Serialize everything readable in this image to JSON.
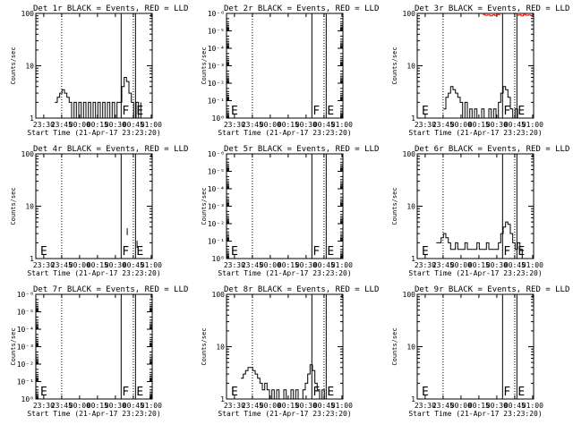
{
  "chart_data": [
    {
      "type": "line",
      "title": "Det 1r BLACK = Events, RED = LLD",
      "xlabel": "Start Time (21-Apr-17 23:23:20)",
      "ylabel": "Counts/sec",
      "x_tick_labels": [
        "23:30",
        "23:45",
        "00:00",
        "00:15",
        "00:30",
        "00:45",
        "01:00"
      ],
      "x_ticks_min": [
        6.67,
        21.67,
        36.67,
        51.67,
        66.67,
        81.67,
        96.67
      ],
      "xlim": [
        0,
        97.5
      ],
      "yscale": "log",
      "ylim": [
        1,
        100
      ],
      "y_tick_labels": [
        "1",
        "10",
        "100"
      ],
      "y_tick_values": [
        1,
        10,
        100
      ],
      "dotted_lines_min": [
        21.67,
        81.67
      ],
      "markers": [
        {
          "label": "F",
          "x": 71.5
        },
        {
          "label": "E",
          "x": 83.5
        }
      ],
      "series": [
        {
          "color": "#000000",
          "x": [
            16,
            18,
            20,
            22,
            24,
            26,
            28,
            30,
            32,
            34,
            36,
            38,
            40,
            42,
            44,
            46,
            48,
            50,
            52,
            54,
            56,
            58,
            60,
            62,
            64,
            66,
            68,
            70,
            72,
            74,
            76,
            78,
            80,
            82,
            84,
            86,
            88
          ],
          "y": [
            2.0,
            2.5,
            3.0,
            3.5,
            3.0,
            2.5,
            2.0,
            1.0,
            2.0,
            1.0,
            2.0,
            1.0,
            2.0,
            1.0,
            2.0,
            1.0,
            2.0,
            1.0,
            2.0,
            1.0,
            2.0,
            1.0,
            2.0,
            1.0,
            2.0,
            1.0,
            2.0,
            2.0,
            4.0,
            6.0,
            5.0,
            3.0,
            2.0,
            1.0,
            2.0,
            1.0,
            2.0
          ]
        }
      ]
    },
    {
      "type": "line",
      "title": "Det 2r BLACK = Events, RED = LLD",
      "xlabel": "Start Time (21-Apr-17 23:23:20)",
      "ylabel": "Counts/sec",
      "x_tick_labels": [
        "23:30",
        "23:45",
        "00:00",
        "00:15",
        "00:30",
        "00:45",
        "01:00"
      ],
      "x_ticks_min": [
        6.67,
        21.67,
        36.67,
        51.67,
        66.67,
        81.67,
        96.67
      ],
      "xlim": [
        0,
        97.5
      ],
      "yscale": "log",
      "ylim": [
        1,
        1e-06
      ],
      "y_tick_labels": [
        "10⁰",
        "10⁻¹",
        "10⁻²",
        "10⁻³",
        "10⁻⁴",
        "10⁻⁵",
        "10⁻⁶"
      ],
      "y_tick_values": [
        1,
        0.1,
        0.01,
        0.001,
        0.0001,
        1e-05,
        1e-06
      ],
      "dotted_lines_min": [
        21.67,
        81.67
      ],
      "markers": [
        {
          "label": "E",
          "x": 3
        },
        {
          "label": "F",
          "x": 71.5
        },
        {
          "label": "E",
          "x": 83.5
        }
      ],
      "series": []
    },
    {
      "type": "line",
      "title": "Det 3r BLACK = Events, RED = LLD",
      "xlabel": "Start Time (21-Apr-17 23:23:20)",
      "ylabel": "Counts/sec",
      "x_tick_labels": [
        "23:30",
        "23:45",
        "00:00",
        "00:15",
        "00:30",
        "00:45",
        "01:00"
      ],
      "x_ticks_min": [
        6.67,
        21.67,
        36.67,
        51.67,
        66.67,
        81.67,
        96.67
      ],
      "xlim": [
        0,
        97.5
      ],
      "yscale": "log",
      "ylim": [
        1,
        100
      ],
      "y_tick_labels": [
        "1",
        "10",
        "100"
      ],
      "y_tick_values": [
        1,
        10,
        100
      ],
      "dotted_lines_min": [
        21.67,
        81.67
      ],
      "markers": [
        {
          "label": "E",
          "x": 3
        },
        {
          "label": "F",
          "x": 71.5
        },
        {
          "label": "E",
          "x": 83.5
        }
      ],
      "series": [
        {
          "color": "#000000",
          "x": [
            22,
            24,
            26,
            28,
            30,
            32,
            34,
            36,
            38,
            40,
            42,
            44,
            46,
            48,
            50,
            52,
            54,
            56,
            58,
            60,
            62,
            64,
            66,
            68,
            70,
            72,
            74,
            76,
            78,
            80,
            82,
            84,
            86,
            88
          ],
          "y": [
            1.5,
            2.5,
            3.0,
            4.0,
            3.5,
            3.0,
            2.5,
            2.0,
            1.0,
            2.0,
            1.0,
            1.5,
            1.0,
            1.5,
            1.0,
            1.0,
            1.5,
            1.0,
            1.0,
            1.5,
            1.0,
            1.5,
            1.0,
            2.0,
            3.0,
            4.0,
            3.5,
            2.5,
            1.5,
            1.0,
            1.5,
            1.0,
            1.0,
            1.0
          ]
        },
        {
          "color": "#ff0000",
          "x": [
            55,
            57,
            59,
            61,
            63,
            65,
            67,
            69
          ],
          "y": [
            95,
            92,
            93,
            90,
            94,
            91,
            95,
            92
          ]
        },
        {
          "color": "#ff0000",
          "x": [
            83,
            85,
            87,
            89,
            91,
            93,
            95,
            97
          ],
          "y": [
            92,
            94,
            90,
            95,
            92,
            93,
            91,
            94
          ]
        }
      ]
    },
    {
      "type": "line",
      "title": "Det 4r BLACK = Events, RED = LLD",
      "xlabel": "Start Time (21-Apr-17 23:23:20)",
      "ylabel": "Counts/sec",
      "x_tick_labels": [
        "23:30",
        "23:45",
        "00:00",
        "00:15",
        "00:30",
        "00:45",
        "01:00"
      ],
      "x_ticks_min": [
        6.67,
        21.67,
        36.67,
        51.67,
        66.67,
        81.67,
        96.67
      ],
      "xlim": [
        0,
        97.5
      ],
      "yscale": "log",
      "ylim": [
        1,
        100
      ],
      "y_tick_labels": [
        "1",
        "10",
        "100"
      ],
      "y_tick_values": [
        1,
        10,
        100
      ],
      "dotted_lines_min": [
        21.67,
        81.67
      ],
      "markers": [
        {
          "label": "E",
          "x": 3
        },
        {
          "label": "F",
          "x": 71.5
        },
        {
          "label": "E",
          "x": 83.5
        }
      ],
      "series": [
        {
          "color": "#000000",
          "x": [
            76.6,
            76.6
          ],
          "y": [
            2.8,
            3.8
          ]
        },
        {
          "color": "#000000",
          "x": [
            84.8,
            84.8
          ],
          "y": [
            1.6,
            2.2
          ]
        }
      ]
    },
    {
      "type": "line",
      "title": "Det 5r BLACK = Events, RED = LLD",
      "xlabel": "Start Time (21-Apr-17 23:23:20)",
      "ylabel": "Counts/sec",
      "x_tick_labels": [
        "23:30",
        "23:45",
        "00:00",
        "00:15",
        "00:30",
        "00:45",
        "01:00"
      ],
      "x_ticks_min": [
        6.67,
        21.67,
        36.67,
        51.67,
        66.67,
        81.67,
        96.67
      ],
      "xlim": [
        0,
        97.5
      ],
      "yscale": "log",
      "ylim": [
        1,
        1e-06
      ],
      "y_tick_labels": [
        "10⁰",
        "10⁻¹",
        "10⁻²",
        "10⁻³",
        "10⁻⁴",
        "10⁻⁵",
        "10⁻⁶"
      ],
      "y_tick_values": [
        1,
        0.1,
        0.01,
        0.001,
        0.0001,
        1e-05,
        1e-06
      ],
      "dotted_lines_min": [
        21.67,
        81.67
      ],
      "markers": [
        {
          "label": "E",
          "x": 3
        },
        {
          "label": "F",
          "x": 71.5
        },
        {
          "label": "E",
          "x": 83.5
        }
      ],
      "series": []
    },
    {
      "type": "line",
      "title": "Det 6r BLACK = Events, RED = LLD",
      "xlabel": "Start Time (21-Apr-17 23:23:20)",
      "ylabel": "Counts/sec",
      "x_tick_labels": [
        "23:30",
        "23:45",
        "00:00",
        "00:15",
        "00:30",
        "00:45",
        "01:00"
      ],
      "x_ticks_min": [
        6.67,
        21.67,
        36.67,
        51.67,
        66.67,
        81.67,
        96.67
      ],
      "xlim": [
        0,
        97.5
      ],
      "yscale": "log",
      "ylim": [
        1,
        100
      ],
      "y_tick_labels": [
        "1",
        "10",
        "100"
      ],
      "y_tick_values": [
        1,
        10,
        100
      ],
      "dotted_lines_min": [
        21.67,
        81.67
      ],
      "markers": [
        {
          "label": "E",
          "x": 3
        },
        {
          "label": "F",
          "x": 71.5
        },
        {
          "label": "E",
          "x": 83.5
        }
      ],
      "series": [
        {
          "color": "#000000",
          "x": [
            16,
            18,
            20,
            22,
            24,
            26,
            28,
            30,
            32,
            34,
            36,
            38,
            40,
            42,
            44,
            46,
            48,
            50,
            52,
            54,
            56,
            58,
            60,
            62,
            64,
            66,
            68,
            70,
            72,
            74,
            76,
            78,
            80,
            82,
            84,
            86,
            88,
            90
          ],
          "y": [
            2.0,
            2.0,
            2.5,
            3.0,
            2.5,
            2.0,
            1.5,
            1.5,
            2.0,
            1.5,
            1.5,
            1.5,
            2.0,
            1.5,
            1.5,
            1.5,
            1.5,
            2.0,
            1.5,
            1.5,
            1.5,
            2.0,
            1.5,
            1.5,
            1.5,
            1.5,
            2.0,
            3.0,
            4.0,
            5.0,
            4.5,
            3.0,
            2.0,
            1.5,
            2.0,
            1.5,
            1.0,
            1.0
          ]
        }
      ]
    },
    {
      "type": "line",
      "title": "Det 7r BLACK = Events, RED = LLD",
      "xlabel": "Start Time (21-Apr-17 23:23:20)",
      "ylabel": "Counts/sec",
      "x_tick_labels": [
        "23:30",
        "23:45",
        "00:00",
        "00:15",
        "00:30",
        "00:45",
        "01:00"
      ],
      "x_ticks_min": [
        6.67,
        21.67,
        36.67,
        51.67,
        66.67,
        81.67,
        96.67
      ],
      "xlim": [
        0,
        97.5
      ],
      "yscale": "log",
      "ylim": [
        1,
        1e-06
      ],
      "y_tick_labels": [
        "10⁰",
        "10⁻¹",
        "10⁻²",
        "10⁻³",
        "10⁻⁴",
        "10⁻⁵",
        "10⁻⁶"
      ],
      "y_tick_values": [
        1,
        0.1,
        0.01,
        0.001,
        0.0001,
        1e-05,
        1e-06
      ],
      "dotted_lines_min": [
        21.67,
        81.67
      ],
      "markers": [
        {
          "label": "E",
          "x": 3
        },
        {
          "label": "F",
          "x": 71.5
        },
        {
          "label": "E",
          "x": 83.5
        }
      ],
      "series": []
    },
    {
      "type": "line",
      "title": "Det 8r BLACK = Events, RED = LLD",
      "xlabel": "Start Time (21-Apr-17 23:23:20)",
      "ylabel": "Counts/sec",
      "x_tick_labels": [
        "23:30",
        "23:45",
        "00:00",
        "00:15",
        "00:30",
        "00:45",
        "01:00"
      ],
      "x_ticks_min": [
        6.67,
        21.67,
        36.67,
        51.67,
        66.67,
        81.67,
        96.67
      ],
      "xlim": [
        0,
        97.5
      ],
      "yscale": "log",
      "ylim": [
        1,
        100
      ],
      "y_tick_labels": [
        "1",
        "10",
        "100"
      ],
      "y_tick_values": [
        1,
        10,
        100
      ],
      "dotted_lines_min": [
        21.67,
        81.67
      ],
      "markers": [
        {
          "label": "E",
          "x": 3
        },
        {
          "label": "F",
          "x": 71.5
        },
        {
          "label": "E",
          "x": 83.5
        }
      ],
      "series": [
        {
          "color": "#000000",
          "x": [
            12,
            14,
            16,
            18,
            20,
            22,
            24,
            26,
            28,
            30,
            32,
            34,
            36,
            38,
            40,
            42,
            44,
            46,
            48,
            50,
            52,
            54,
            56,
            58,
            60,
            62,
            64,
            66,
            68,
            70,
            72,
            74,
            76,
            78,
            80,
            82,
            84,
            86
          ],
          "y": [
            2.5,
            3.0,
            3.5,
            4.0,
            4.0,
            3.5,
            3.0,
            2.5,
            2.0,
            1.5,
            2.0,
            1.5,
            1.0,
            1.5,
            1.0,
            1.5,
            1.0,
            1.0,
            1.5,
            1.0,
            1.0,
            1.5,
            1.0,
            1.5,
            1.0,
            1.0,
            1.5,
            2.0,
            3.0,
            4.5,
            3.5,
            2.0,
            1.5,
            1.0,
            1.5,
            1.0,
            1.0,
            1.0
          ]
        }
      ]
    },
    {
      "type": "line",
      "title": "Det 9r BLACK = Events, RED = LLD",
      "xlabel": "Start Time (21-Apr-17 23:23:20)",
      "ylabel": "Counts/sec",
      "x_tick_labels": [
        "23:30",
        "23:45",
        "00:00",
        "00:15",
        "00:30",
        "00:45",
        "01:00"
      ],
      "x_ticks_min": [
        6.67,
        21.67,
        36.67,
        51.67,
        66.67,
        81.67,
        96.67
      ],
      "xlim": [
        0,
        97.5
      ],
      "yscale": "log",
      "ylim": [
        1,
        100
      ],
      "y_tick_labels": [
        "1",
        "10",
        "100"
      ],
      "y_tick_values": [
        1,
        10,
        100
      ],
      "dotted_lines_min": [
        21.67,
        81.67
      ],
      "markers": [
        {
          "label": "E",
          "x": 3
        },
        {
          "label": "F",
          "x": 71.5
        },
        {
          "label": "E",
          "x": 83.5
        }
      ],
      "series": []
    }
  ]
}
